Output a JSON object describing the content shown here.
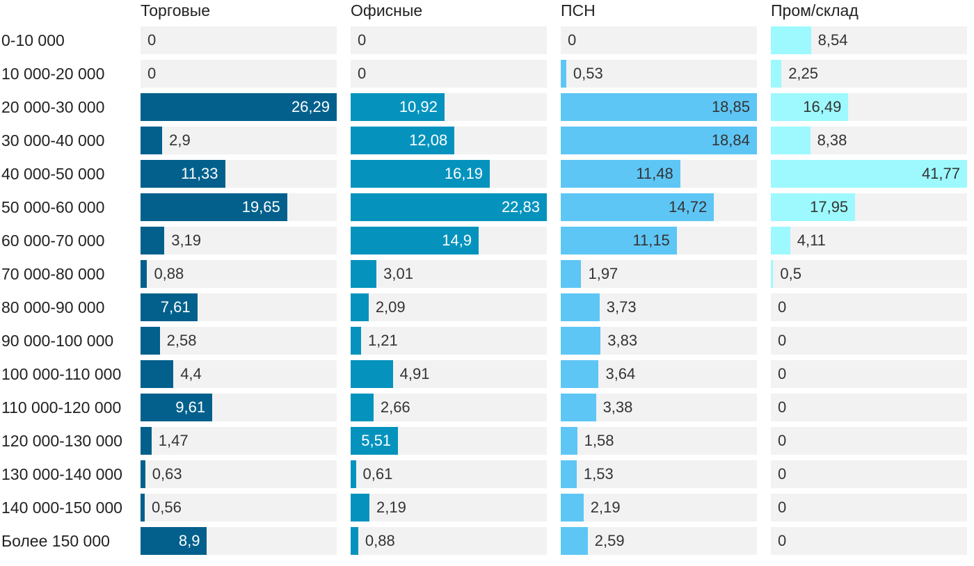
{
  "chart_data": {
    "type": "bar",
    "orientation": "horizontal",
    "layout": "small-multiples",
    "categories": [
      "0-10 000",
      "10 000-20 000",
      "20 000-30 000",
      "30 000-40 000",
      "40 000-50 000",
      "50 000-60 000",
      "60 000-70 000",
      "70 000-80 000",
      "80 000-90 000",
      "90 000-100 000",
      "100 000-110 000",
      "110 000-120 000",
      "120 000-130 000",
      "130 000-140 000",
      "140 000-150 000",
      "Более 150 000"
    ],
    "series": [
      {
        "name": "Торговые",
        "color": "#03608c",
        "label_color_inside": "#ffffff",
        "values": [
          0,
          0,
          26.29,
          2.9,
          11.33,
          19.65,
          3.19,
          0.88,
          7.61,
          2.58,
          4.4,
          9.61,
          1.47,
          0.63,
          0.56,
          8.9
        ],
        "labels": [
          "0",
          "0",
          "26,29",
          "2,9",
          "11,33",
          "19,65",
          "3,19",
          "0,88",
          "7,61",
          "2,58",
          "4,4",
          "9,61",
          "1,47",
          "0,63",
          "0,56",
          "8,9"
        ]
      },
      {
        "name": "Офисные",
        "color": "#0593be",
        "label_color_inside": "#ffffff",
        "values": [
          0,
          0,
          10.92,
          12.08,
          16.19,
          22.83,
          14.9,
          3.01,
          2.09,
          1.21,
          4.91,
          2.66,
          5.51,
          0.61,
          2.19,
          0.88
        ],
        "labels": [
          "0",
          "0",
          "10,92",
          "12,08",
          "16,19",
          "22,83",
          "14,9",
          "3,01",
          "2,09",
          "1,21",
          "4,91",
          "2,66",
          "5,51",
          "0,61",
          "2,19",
          "0,88"
        ]
      },
      {
        "name": "ПСН",
        "color": "#5ec6f5",
        "label_color_inside": "#333333",
        "values": [
          0,
          0.53,
          18.85,
          18.84,
          11.48,
          14.72,
          11.15,
          1.97,
          3.73,
          3.83,
          3.64,
          3.38,
          1.58,
          1.53,
          2.19,
          2.59
        ],
        "labels": [
          "0",
          "0,53",
          "18,85",
          "18,84",
          "11,48",
          "14,72",
          "11,15",
          "1,97",
          "3,73",
          "3,83",
          "3,64",
          "3,38",
          "1,58",
          "1,53",
          "2,19",
          "2,59"
        ]
      },
      {
        "name": "Пром/склад",
        "color": "#9df9fd",
        "label_color_inside": "#333333",
        "values": [
          8.54,
          2.25,
          16.49,
          8.38,
          41.77,
          17.95,
          4.11,
          0.5,
          0,
          0,
          0,
          0,
          0,
          0,
          0,
          0
        ],
        "labels": [
          "8,54",
          "2,25",
          "16,49",
          "8,38",
          "41,77",
          "17,95",
          "4,11",
          "0,5",
          "0",
          "0",
          "0",
          "0",
          "0",
          "0",
          "0",
          "0"
        ]
      }
    ],
    "xlim_per_series": [
      26.29,
      22.83,
      18.85,
      41.77
    ],
    "track_color": "#f2f2f2",
    "label_color_outside": "#333333",
    "grid": false,
    "legend": "none"
  }
}
